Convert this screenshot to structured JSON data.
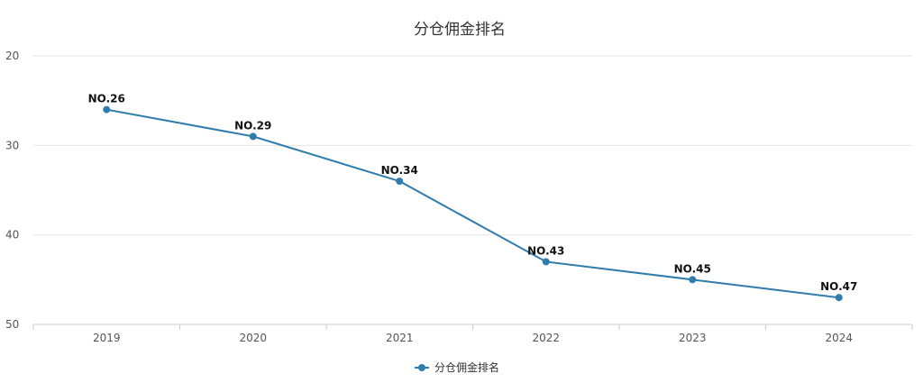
{
  "chart_data": {
    "type": "line",
    "title": "分仓佣金排名",
    "x": [
      "2019",
      "2020",
      "2021",
      "2022",
      "2023",
      "2024"
    ],
    "series": [
      {
        "name": "分仓佣金排名",
        "values": [
          26,
          29,
          34,
          43,
          45,
          47
        ],
        "labels": [
          "NO.26",
          "NO.29",
          "NO.34",
          "NO.43",
          "NO.45",
          "NO.47"
        ]
      }
    ],
    "y_ticks": [
      "20",
      "30",
      "40",
      "50"
    ],
    "ylim": [
      20,
      50
    ],
    "y_inverted": true,
    "grid": true,
    "legend_position": "bottom-center",
    "colors": {
      "series": "#2f7cad",
      "grid": "#e6e6e6",
      "axis": "#cccccc"
    }
  }
}
